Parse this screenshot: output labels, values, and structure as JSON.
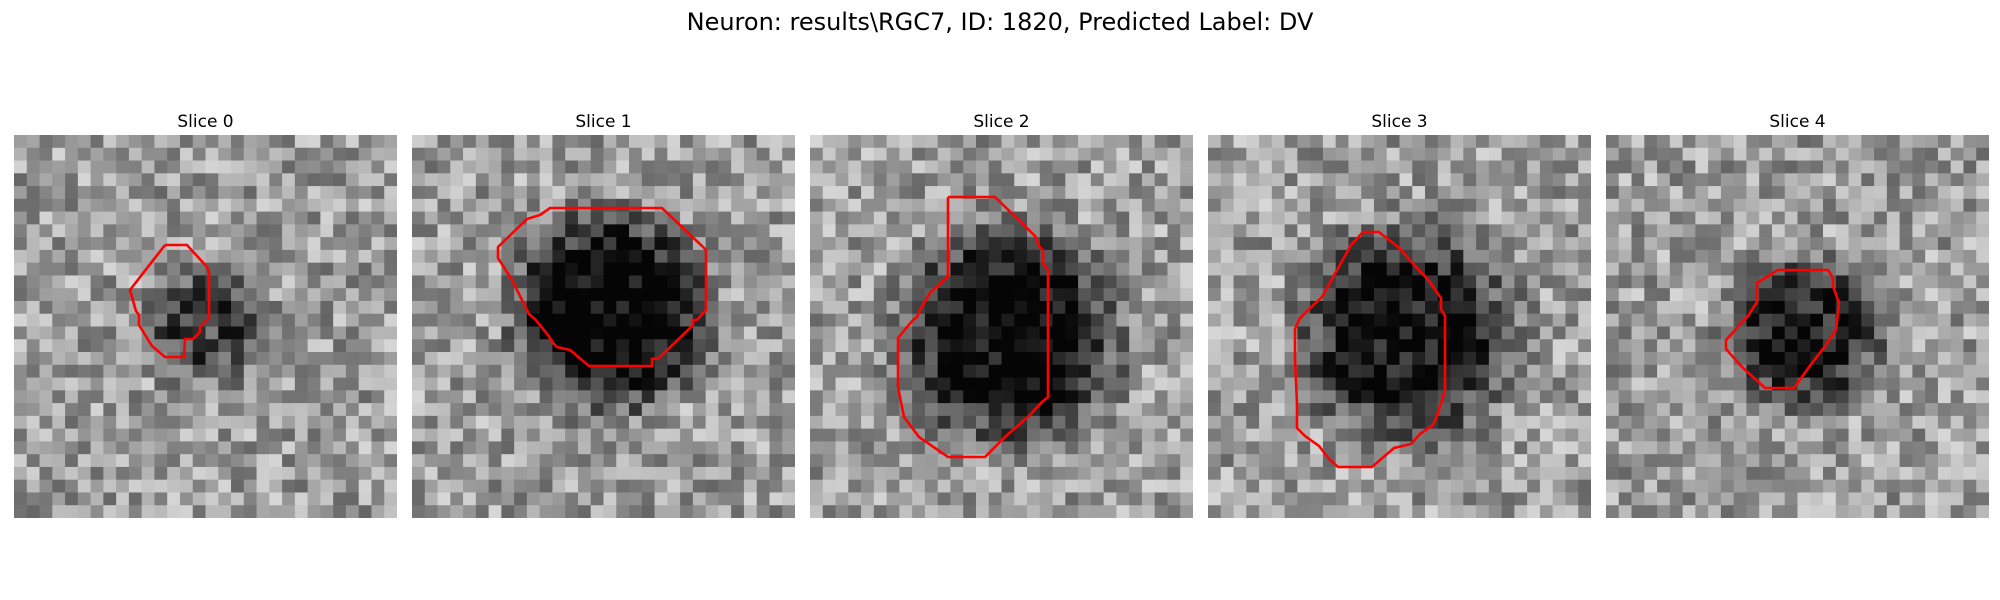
{
  "figure": {
    "title": "Neuron: results\\RGC7, ID: 1820, Predicted Label: DV"
  },
  "panels": [
    {
      "title": "Slice 0",
      "center": "mid",
      "contour_color": "#ff0000"
    },
    {
      "title": "Slice 1",
      "center": "dark",
      "contour_color": "#ff0000"
    },
    {
      "title": "Slice 2",
      "center": "dark",
      "contour_color": "#ff0000"
    },
    {
      "title": "Slice 3",
      "center": "dark",
      "contour_color": "#ff0000"
    },
    {
      "title": "Slice 4",
      "center": "mid-dark",
      "contour_color": "#ff0000"
    }
  ]
}
